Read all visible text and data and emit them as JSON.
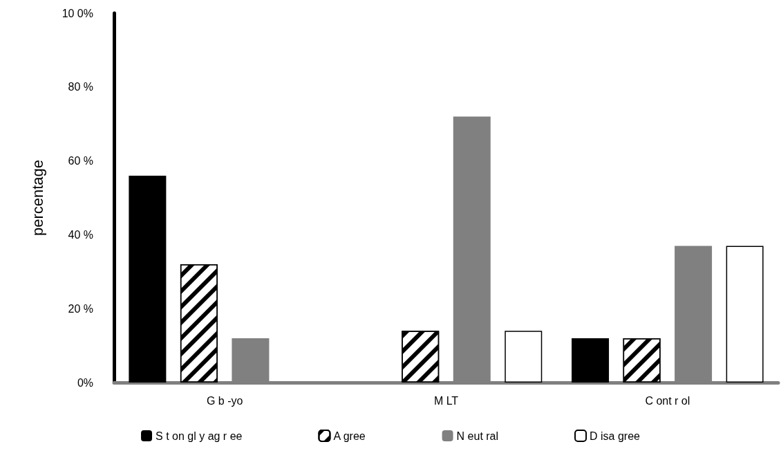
{
  "chart_data": {
    "type": "bar",
    "ylabel": "percentage",
    "categories": [
      "G b -yo",
      "M LT",
      "C ont r ol"
    ],
    "series": [
      {
        "name": "S t on gl y ag r ee",
        "color": "#000000",
        "values": [
          56,
          0,
          12
        ]
      },
      {
        "name": "A gree",
        "color": "#000000",
        "values": [
          32,
          14,
          12
        ]
      },
      {
        "name": "N eut ral",
        "color": "#808080",
        "values": [
          12,
          72,
          37
        ]
      },
      {
        "name": "D isa gree",
        "color": "#000000",
        "values": [
          0,
          14,
          37
        ]
      }
    ],
    "ylim": [
      0,
      100
    ],
    "yticks": [
      "0%",
      {
        "value": 20,
        "label": "20 %"
      },
      {
        "value": 40,
        "label": "40 %"
      },
      {
        "value": 60,
        "label": "60 %"
      },
      {
        "value": 80,
        "label": "80 %"
      },
      {
        "value": 100,
        "label": "10 0%"
      }
    ],
    "grid": false,
    "legend": "bottom"
  }
}
